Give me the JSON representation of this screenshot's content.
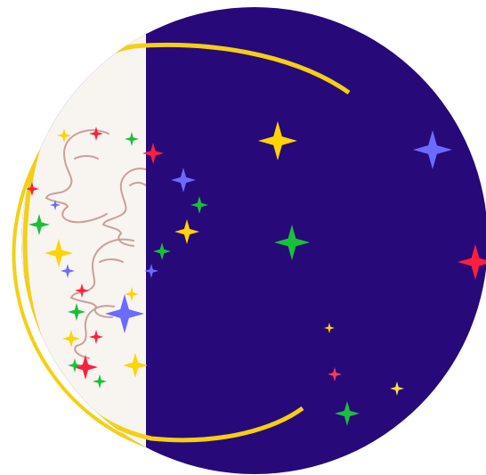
{
  "palette": {
    "background": "#ffffff",
    "night_sky": "#27097a",
    "cream_panel": "#f8f4f0",
    "moon_ring": "#f5cf13",
    "face_line": "#c8a09a"
  },
  "icons": {
    "stars": "sparkle-star-icon",
    "faces": "line-art-face-icon"
  },
  "star_colors": [
    "#ffd400",
    "#6b6bff",
    "#18c03a",
    "#ff1f3d",
    "#ff3b5a",
    "#ffe040"
  ]
}
